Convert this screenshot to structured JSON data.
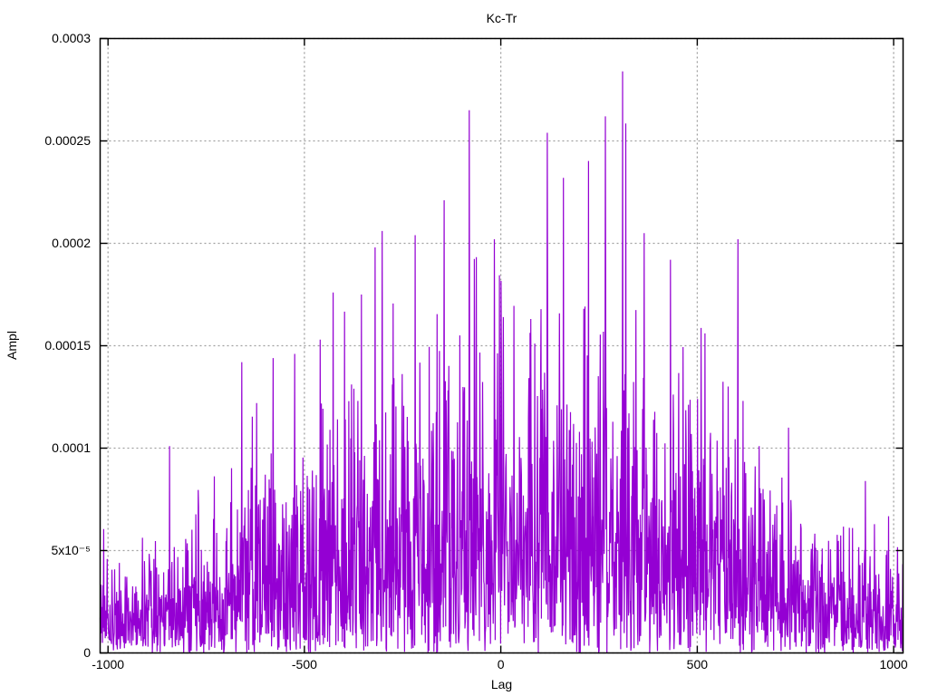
{
  "figure": {
    "background_color": "#ffffff",
    "text_color": "#000000"
  },
  "chart_data": {
    "type": "line",
    "title": "Kc-Tr",
    "xlabel": "Lag",
    "ylabel": "Ampl",
    "legend": "none",
    "grid": true,
    "grid_style": "dotted",
    "line_color": "#9400d3",
    "grid_color": "#a0a0a0",
    "border_color": "#000000",
    "xlim": [
      -1020,
      1024
    ],
    "ylim": [
      0,
      0.0003
    ],
    "x_ticks": [
      {
        "value": -1000,
        "label": "-1000"
      },
      {
        "value": -500,
        "label": "-500"
      },
      {
        "value": 0,
        "label": "0"
      },
      {
        "value": 500,
        "label": "500"
      },
      {
        "value": 1000,
        "label": "1000"
      }
    ],
    "y_ticks": [
      {
        "value": 0,
        "label": "0"
      },
      {
        "value": 5e-05,
        "label": "5x10⁻⁵"
      },
      {
        "value": 0.0001,
        "label": "0.0001"
      },
      {
        "value": 0.00015,
        "label": "0.00015"
      },
      {
        "value": 0.0002,
        "label": "0.0002"
      },
      {
        "value": 0.00025,
        "label": "0.00025"
      },
      {
        "value": 0.0003,
        "label": "0.0003"
      }
    ],
    "description": "Dense noisy amplitude-vs-lag trace (cross-correlation style): half-normal noise under a broad bell envelope, low (~0.00002-0.00005) at lags ±1000, rising to frequent 0.0001-0.0002 values near lag 0-300, isolated spikes up to 0.000284.",
    "generation": {
      "n_points": 2048,
      "seed": 42,
      "noise": "half-normal",
      "envelope_sigma_points": [
        [
          -1020,
          1.8e-05
        ],
        [
          -900,
          2.4e-05
        ],
        [
          -800,
          2.8e-05
        ],
        [
          -700,
          3.6e-05
        ],
        [
          -600,
          4.4e-05
        ],
        [
          -500,
          5.1e-05
        ],
        [
          -400,
          5.7e-05
        ],
        [
          -300,
          6.2e-05
        ],
        [
          -200,
          6.6e-05
        ],
        [
          -100,
          7e-05
        ],
        [
          0,
          7.3e-05
        ],
        [
          100,
          7.5e-05
        ],
        [
          200,
          7.6e-05
        ],
        [
          300,
          7.8e-05
        ],
        [
          400,
          6.8e-05
        ],
        [
          500,
          6.1e-05
        ],
        [
          600,
          5.3e-05
        ],
        [
          700,
          3.7e-05
        ],
        [
          800,
          2.9e-05
        ],
        [
          900,
          2.6e-05
        ],
        [
          1024,
          2.1e-05
        ]
      ],
      "notable_peaks": [
        [
          -843,
          0.000101
        ],
        [
          -660,
          0.000142
        ],
        [
          -580,
          0.000144
        ],
        [
          -525,
          0.000146
        ],
        [
          -460,
          0.000153
        ],
        [
          -427,
          0.000176
        ],
        [
          -355,
          0.000175
        ],
        [
          -320,
          0.000198
        ],
        [
          -302,
          0.000206
        ],
        [
          -218,
          0.000204
        ],
        [
          -144,
          0.000221
        ],
        [
          -80,
          0.000265
        ],
        [
          -16,
          0.000202
        ],
        [
          118,
          0.000254
        ],
        [
          159,
          0.000232
        ],
        [
          266,
          0.000262
        ],
        [
          310,
          0.000284
        ],
        [
          365,
          0.000205
        ],
        [
          432,
          0.000192
        ],
        [
          520,
          0.000156
        ],
        [
          604,
          0.000202
        ],
        [
          658,
          0.000101
        ],
        [
          732,
          0.00011
        ],
        [
          928,
          8.4e-05
        ]
      ]
    }
  }
}
